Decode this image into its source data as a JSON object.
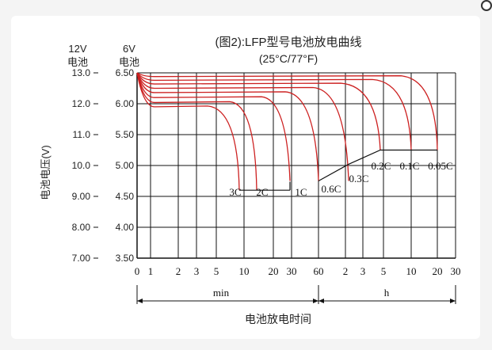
{
  "chart_data": {
    "type": "line",
    "title": "(图2):LFP型号电池放电曲线",
    "subtitle": "(25°C/77°F)",
    "xlabel": "电池放电时间",
    "ylabel": "电池电压(V)",
    "y_axes": [
      {
        "header": [
          "12V",
          "电池"
        ],
        "ticks": [
          "13.0",
          "12.0",
          "11.0",
          "10.0",
          "9.00",
          "8.00",
          "7.00"
        ]
      },
      {
        "header": [
          "6V",
          "电池"
        ],
        "ticks": [
          "6.50",
          "6.00",
          "5.50",
          "5.00",
          "4.50",
          "4.00",
          "3.50"
        ]
      }
    ],
    "ylim_6v": [
      3.5,
      6.5
    ],
    "x_ticks": [
      "0",
      "1",
      "2",
      "3",
      "5",
      "10",
      "20",
      "30",
      "60",
      "2",
      "3",
      "5",
      "10",
      "20",
      "30"
    ],
    "x_ranges": [
      {
        "label": "min"
      },
      {
        "label": "h"
      }
    ],
    "grid": true,
    "series": [
      {
        "name": "3C",
        "cutoff_v6": 4.6,
        "end_time": "9 min"
      },
      {
        "name": "2C",
        "cutoff_v6": 4.6,
        "end_time": "20 min"
      },
      {
        "name": "1C",
        "cutoff_v6": 4.75,
        "end_time": "60 min"
      },
      {
        "name": "0.6C",
        "cutoff_v6": 4.75,
        "end_time": "1.6 h"
      },
      {
        "name": "0.3C",
        "cutoff_v6": 4.75,
        "end_time": "3.3 h"
      },
      {
        "name": "0.2C",
        "cutoff_v6": 5.25,
        "end_time": "5 h"
      },
      {
        "name": "0.1C",
        "cutoff_v6": 5.25,
        "end_time": "10 h"
      },
      {
        "name": "0.05C",
        "cutoff_v6": 5.25,
        "end_time": "20 h"
      }
    ],
    "line_color": "#cc1f1f"
  }
}
